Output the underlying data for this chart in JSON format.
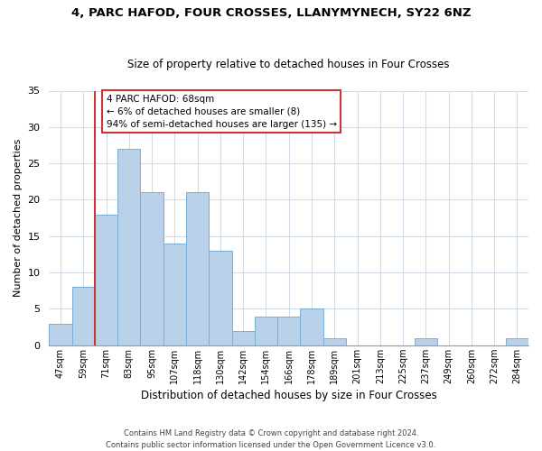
{
  "title": "4, PARC HAFOD, FOUR CROSSES, LLANYMYNECH, SY22 6NZ",
  "subtitle": "Size of property relative to detached houses in Four Crosses",
  "xlabel": "Distribution of detached houses by size in Four Crosses",
  "ylabel": "Number of detached properties",
  "bar_labels": [
    "47sqm",
    "59sqm",
    "71sqm",
    "83sqm",
    "95sqm",
    "107sqm",
    "118sqm",
    "130sqm",
    "142sqm",
    "154sqm",
    "166sqm",
    "178sqm",
    "189sqm",
    "201sqm",
    "213sqm",
    "225sqm",
    "237sqm",
    "249sqm",
    "260sqm",
    "272sqm",
    "284sqm"
  ],
  "bar_values": [
    3,
    8,
    18,
    27,
    21,
    14,
    21,
    13,
    2,
    4,
    4,
    5,
    1,
    0,
    0,
    0,
    1,
    0,
    0,
    0,
    1
  ],
  "bar_color": "#b8d0e8",
  "bar_edge_color": "#7aafd4",
  "highlight_line_index": 2,
  "highlight_color": "#cc3333",
  "ylim": [
    0,
    35
  ],
  "yticks": [
    0,
    5,
    10,
    15,
    20,
    25,
    30,
    35
  ],
  "annotation_lines": [
    "4 PARC HAFOD: 68sqm",
    "← 6% of detached houses are smaller (8)",
    "94% of semi-detached houses are larger (135) →"
  ],
  "footer_lines": [
    "Contains HM Land Registry data © Crown copyright and database right 2024.",
    "Contains public sector information licensed under the Open Government Licence v3.0."
  ],
  "background_color": "#ffffff",
  "grid_color": "#d0dce8",
  "title_fontsize": 9.5,
  "subtitle_fontsize": 8.5
}
